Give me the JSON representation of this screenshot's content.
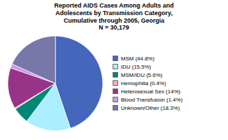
{
  "chart_data": {
    "type": "pie",
    "title": "Reported AIDS Cases Among Adults and\nAdolescents by Transmission Category,\nCumulative through 2005, Georgia\nN = 30,179",
    "categories": [
      "MSM (44.8%)",
      "IDU (15.5%)",
      "MSM/IDU (5.6%)",
      "Hemophilia (0.4%)",
      "Heterosexual Sex (14%)",
      "Blood Transfusion (1.4%)",
      "Unknown/Other (18.3%)"
    ],
    "values": [
      44.8,
      15.5,
      5.6,
      0.4,
      14.0,
      1.4,
      18.3
    ],
    "colors": [
      "#4466bb",
      "#aaeeff",
      "#008877",
      "#ffaabb",
      "#993388",
      "#cc99ee",
      "#7777aa"
    ],
    "legend": "right"
  }
}
